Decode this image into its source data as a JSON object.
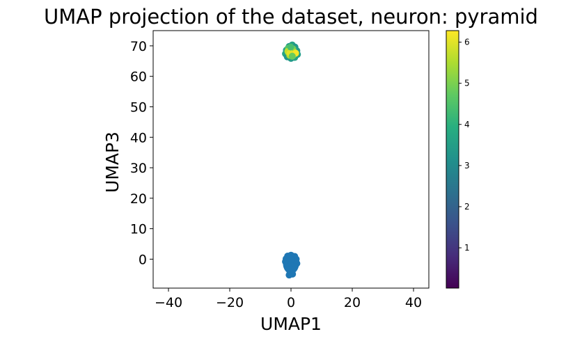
{
  "chart_data": {
    "type": "scatter",
    "title": "UMAP projection of the dataset, neuron: pyramid",
    "xlabel": "UMAP1",
    "ylabel": "UMAP3",
    "xlim": [
      -45,
      45
    ],
    "ylim": [
      -9.5,
      75
    ],
    "xticks": [
      -40,
      -20,
      0,
      20,
      40
    ],
    "xtick_labels": [
      "−40",
      "−20",
      "0",
      "20",
      "40"
    ],
    "yticks": [
      0,
      10,
      20,
      30,
      40,
      50,
      60,
      70
    ],
    "ytick_labels": [
      "0",
      "10",
      "20",
      "30",
      "40",
      "50",
      "60",
      "70"
    ],
    "grid": false,
    "legend": "none",
    "colormap": "viridis",
    "colorbar": {
      "vmin": 0.02,
      "vmax": 6.28,
      "ticks": [
        1,
        2,
        3,
        4,
        5,
        6
      ],
      "tick_labels": [
        "1",
        "2",
        "3",
        "4",
        "5",
        "6"
      ]
    },
    "clusters": [
      {
        "center": [
          0,
          68
        ],
        "spread": [
          1.6,
          1.8
        ],
        "color_range": [
          3.2,
          6.2
        ],
        "dominant_color": "#1f77b4"
      },
      {
        "center": [
          0,
          -1.5
        ],
        "spread": [
          1.7,
          2.4
        ],
        "color_range": [
          2.2,
          2.2
        ],
        "dominant_color": "#1f77b4"
      }
    ],
    "points": [
      {
        "x": -0.6,
        "y": 69.8,
        "c": 3.4
      },
      {
        "x": 0.4,
        "y": 70.3,
        "c": 3.6
      },
      {
        "x": 1.3,
        "y": 69.6,
        "c": 3.3
      },
      {
        "x": -1.5,
        "y": 68.6,
        "c": 3.5
      },
      {
        "x": 1.9,
        "y": 68.4,
        "c": 3.4
      },
      {
        "x": -1.8,
        "y": 67.4,
        "c": 3.7
      },
      {
        "x": 2.1,
        "y": 67.2,
        "c": 3.5
      },
      {
        "x": -1.2,
        "y": 66.4,
        "c": 3.3
      },
      {
        "x": 1.2,
        "y": 66.2,
        "c": 3.6
      },
      {
        "x": 0.0,
        "y": 65.9,
        "c": 3.4
      },
      {
        "x": -0.9,
        "y": 69.2,
        "c": 4.6
      },
      {
        "x": 0.6,
        "y": 69.0,
        "c": 4.9
      },
      {
        "x": -0.2,
        "y": 68.4,
        "c": 5.2
      },
      {
        "x": 0.9,
        "y": 68.0,
        "c": 5.4
      },
      {
        "x": -0.8,
        "y": 67.8,
        "c": 5.6
      },
      {
        "x": 0.2,
        "y": 67.4,
        "c": 5.8
      },
      {
        "x": -0.4,
        "y": 66.9,
        "c": 5.5
      },
      {
        "x": 0.7,
        "y": 67.0,
        "c": 5.9
      },
      {
        "x": -1.0,
        "y": 68.2,
        "c": 5.7
      },
      {
        "x": 0.1,
        "y": 68.8,
        "c": 5.3
      },
      {
        "x": 1.5,
        "y": 67.6,
        "c": 6.2
      },
      {
        "x": -0.3,
        "y": 67.6,
        "c": 6.0
      },
      {
        "x": 0.4,
        "y": 66.6,
        "c": 4.8
      },
      {
        "x": -0.1,
        "y": 69.6,
        "c": 4.4
      },
      {
        "x": -1.1,
        "y": 1.0,
        "c": 2.2
      },
      {
        "x": 0.0,
        "y": 1.3,
        "c": 2.2
      },
      {
        "x": 1.2,
        "y": 0.9,
        "c": 2.2
      },
      {
        "x": -1.6,
        "y": 0.1,
        "c": 2.2
      },
      {
        "x": -0.5,
        "y": 0.3,
        "c": 2.2
      },
      {
        "x": 0.6,
        "y": 0.2,
        "c": 2.2
      },
      {
        "x": 1.7,
        "y": 0.0,
        "c": 2.2
      },
      {
        "x": -1.8,
        "y": -0.8,
        "c": 2.2
      },
      {
        "x": -0.7,
        "y": -0.6,
        "c": 2.2
      },
      {
        "x": 0.4,
        "y": -0.7,
        "c": 2.2
      },
      {
        "x": 1.5,
        "y": -0.9,
        "c": 2.2
      },
      {
        "x": -1.4,
        "y": -1.7,
        "c": 2.2
      },
      {
        "x": -0.2,
        "y": -1.6,
        "c": 2.2
      },
      {
        "x": 1.0,
        "y": -1.8,
        "c": 2.2
      },
      {
        "x": 1.9,
        "y": -1.4,
        "c": 2.2
      },
      {
        "x": -1.0,
        "y": -2.6,
        "c": 2.2
      },
      {
        "x": 0.2,
        "y": -2.7,
        "c": 2.2
      },
      {
        "x": 1.2,
        "y": -2.5,
        "c": 2.2
      },
      {
        "x": -0.6,
        "y": -3.5,
        "c": 2.2
      },
      {
        "x": 0.6,
        "y": -3.4,
        "c": 2.2
      },
      {
        "x": -0.2,
        "y": -4.3,
        "c": 2.2
      },
      {
        "x": 0.5,
        "y": -4.9,
        "c": 2.2
      },
      {
        "x": -0.6,
        "y": -5.2,
        "c": 2.2
      },
      {
        "x": 0.1,
        "y": -0.1,
        "c": 2.2
      }
    ]
  }
}
